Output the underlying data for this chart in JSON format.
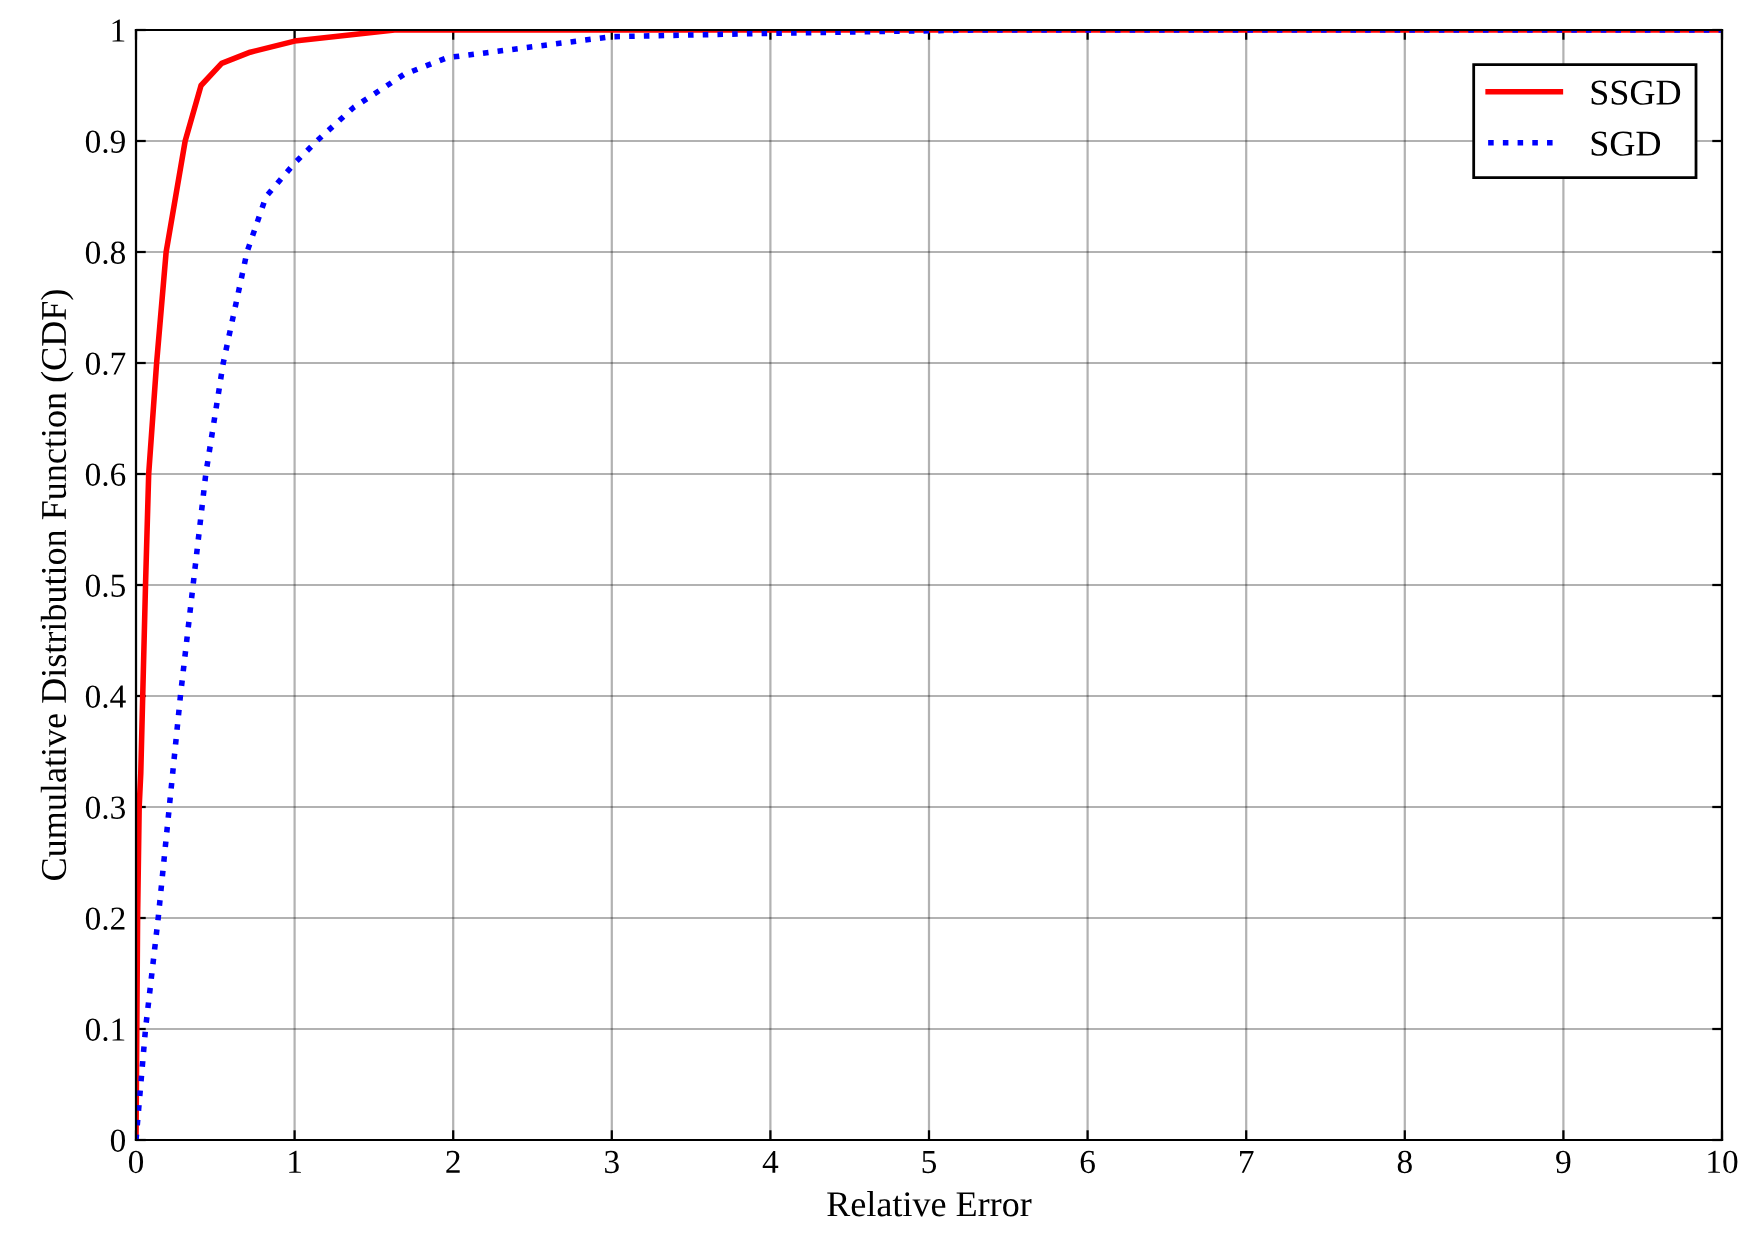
{
  "chart_data": {
    "type": "line",
    "xlabel": "Relative Error",
    "ylabel": "Cumulative Distribution Function (CDF)",
    "xlim": [
      0,
      10
    ],
    "ylim": [
      0,
      1
    ],
    "xticks": [
      0,
      1,
      2,
      3,
      4,
      5,
      6,
      7,
      8,
      9,
      10
    ],
    "yticks": [
      0,
      0.1,
      0.2,
      0.3,
      0.4,
      0.5,
      0.6,
      0.7,
      0.8,
      0.9,
      1
    ],
    "grid": true,
    "legend": "top right",
    "series": [
      {
        "name": "SSGD",
        "color": "#ff0000",
        "line_style": "solid",
        "x": [
          0,
          0.01,
          0.02,
          0.03,
          0.06,
          0.08,
          0.13,
          0.19,
          0.31,
          0.41,
          0.54,
          0.72,
          1.0,
          1.63,
          10
        ],
        "values": [
          0,
          0.2,
          0.3,
          0.33,
          0.5,
          0.6,
          0.7,
          0.8,
          0.9,
          0.95,
          0.97,
          0.98,
          0.99,
          1,
          1
        ]
      },
      {
        "name": "SGD",
        "color": "#0000ff",
        "line_style": "dotted",
        "x": [
          0,
          0.06,
          0.14,
          0.21,
          0.28,
          0.36,
          0.44,
          0.55,
          0.7,
          0.82,
          1.0,
          1.14,
          1.37,
          1.69,
          1.96,
          3.0,
          4.0,
          5.3,
          10
        ],
        "values": [
          0,
          0.1,
          0.2,
          0.3,
          0.4,
          0.5,
          0.6,
          0.7,
          0.8,
          0.85,
          0.88,
          0.9,
          0.93,
          0.96,
          0.975,
          0.994,
          0.997,
          1,
          1
        ]
      }
    ]
  }
}
